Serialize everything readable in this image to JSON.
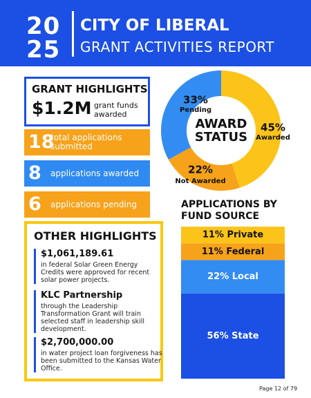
{
  "header": {
    "year_top": "20",
    "year_bottom": "25",
    "title": "CITY OF LIBERAL",
    "subtitle": "GRANT ACTIVITIES REPORT"
  },
  "grant_highlights": {
    "title": "GRANT HIGHLIGHTS",
    "amount": "$1.2M",
    "amount_text": "grant funds awarded"
  },
  "stats": [
    {
      "number": "18",
      "text": "total applications submitted",
      "color": "#f7a21b"
    },
    {
      "number": "8",
      "text": "applications awarded",
      "color": "#2f8af2"
    },
    {
      "number": "6",
      "text": "applications pending",
      "color": "#f7a21b"
    }
  ],
  "other_highlights": {
    "title": "OTHER HIGHLIGHTS",
    "items": [
      {
        "heading": "$1,061,189.61",
        "text": "in federal Solar Green Energy Credits were approved for recent solar power projects."
      },
      {
        "heading": "KLC Partnership",
        "text": "through the Leadership Transformation Grant will train selected staff in leadership skill development."
      },
      {
        "heading": "$2,700,000.00",
        "text": "in water project loan forgiveness has been submitted to the Kansas Water Office."
      }
    ]
  },
  "chart_data": [
    {
      "type": "pie",
      "donut": true,
      "title": "AWARD STATUS",
      "categories": [
        "Awarded",
        "Not Awarded",
        "Pending"
      ],
      "values": [
        45,
        22,
        33
      ],
      "value_labels": [
        "45%",
        "22%",
        "33%"
      ],
      "colors": [
        "#fcc419",
        "#f7a21b",
        "#338cf1"
      ]
    },
    {
      "type": "stacked_bar",
      "title": "APPLICATIONS BY FUND SOURCE",
      "values": [
        11,
        11,
        22,
        56
      ],
      "value_labels": [
        "11% Private",
        "11% Federal",
        "22% Local",
        "56% State"
      ],
      "colors": [
        "#fcc419",
        "#f7a21b",
        "#338cf1",
        "#1c4fe3"
      ]
    }
  ],
  "footer": {
    "page": "Page 12 of 79"
  }
}
